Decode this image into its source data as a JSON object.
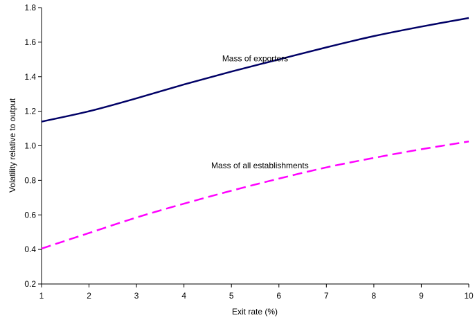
{
  "chart_data": {
    "type": "line",
    "xlabel": "Exit rate (%)",
    "ylabel": "Volatility relative to output",
    "xlim": [
      1,
      10
    ],
    "ylim": [
      0.2,
      1.8
    ],
    "xticks": [
      "1",
      "2",
      "3",
      "4",
      "5",
      "6",
      "7",
      "8",
      "9",
      "10"
    ],
    "yticks": [
      "0.2",
      "0.4",
      "0.6",
      "0.8",
      "1.0",
      "1.2",
      "1.4",
      "1.6",
      "1.8"
    ],
    "grid": false,
    "legend": "none",
    "x": [
      1,
      2,
      3,
      4,
      5,
      6,
      7,
      8,
      9,
      10
    ],
    "series": [
      {
        "name": "Mass of exporters",
        "values": [
          1.14,
          1.2,
          1.275,
          1.355,
          1.43,
          1.5,
          1.57,
          1.635,
          1.69,
          1.74
        ],
        "color": "#000066",
        "style": "solid"
      },
      {
        "name": "Mass of all establishments",
        "values": [
          0.405,
          0.495,
          0.585,
          0.665,
          0.74,
          0.81,
          0.875,
          0.93,
          0.98,
          1.025
        ],
        "color": "#FF00FF",
        "style": "dashed"
      }
    ],
    "annotations": [
      {
        "text": "Mass of exporters",
        "x": 5.5,
        "y": 1.49
      },
      {
        "text": "Mass of all establishments",
        "x": 5.6,
        "y": 0.87
      }
    ]
  }
}
